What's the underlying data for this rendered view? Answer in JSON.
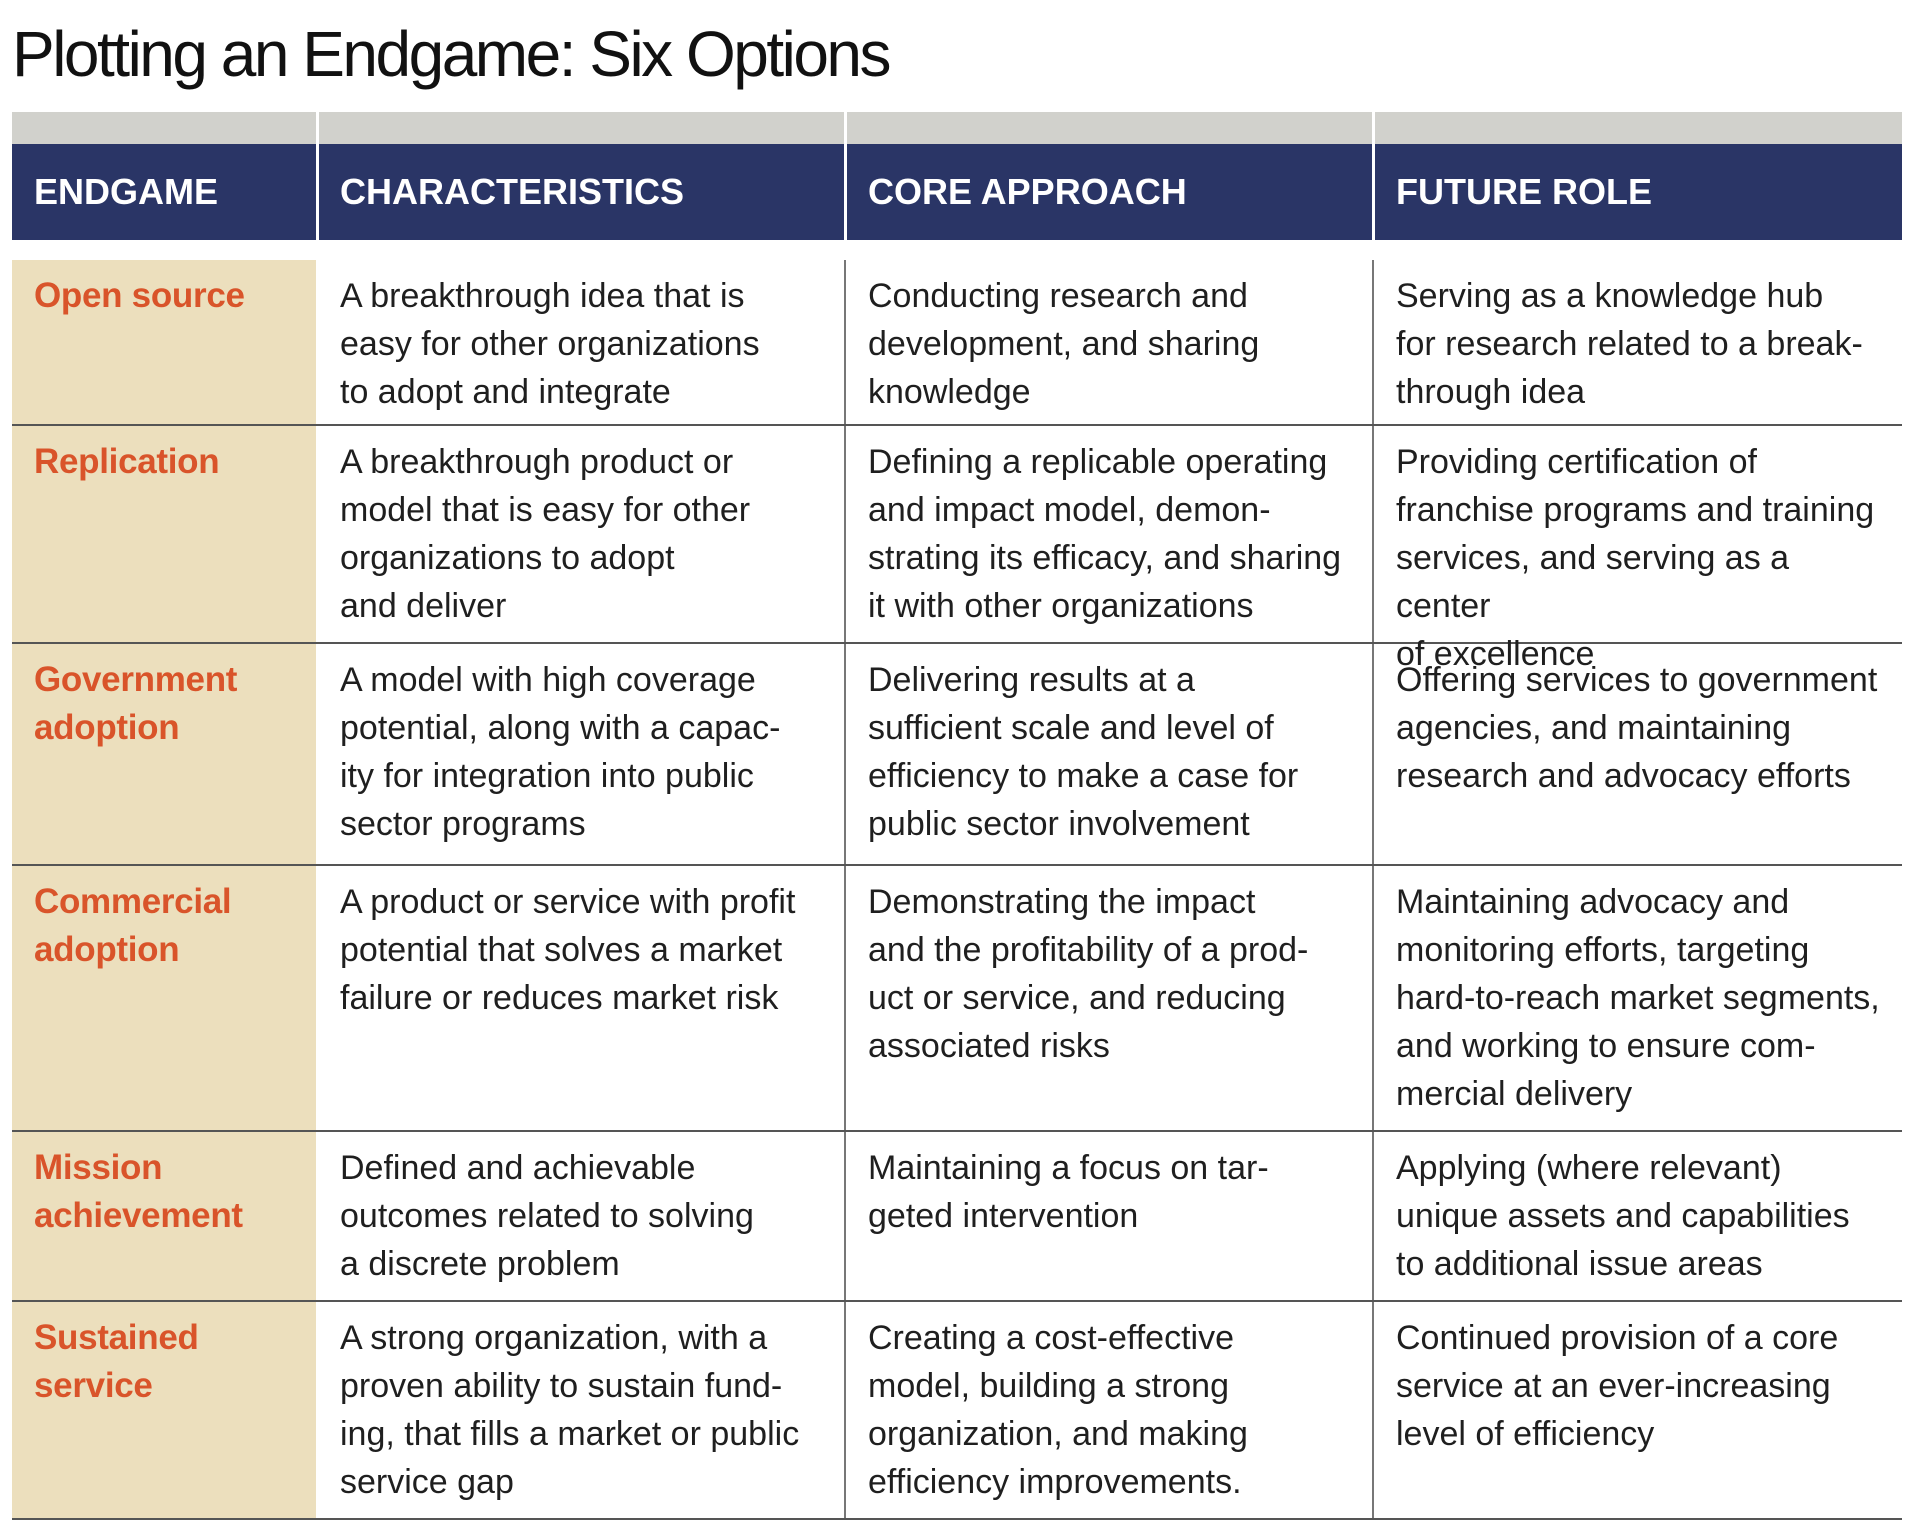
{
  "title": "Plotting an Endgame: Six Options",
  "colors": {
    "header_bg": "#2a3566",
    "header_text": "#ffffff",
    "endgame_bg": "#ecdfbd",
    "endgame_text": "#d9542a",
    "top_bar": "#d1d1cc"
  },
  "table": {
    "headers": [
      "ENDGAME",
      "CHARACTERISTICS",
      "CORE APPROACH",
      "FUTURE ROLE"
    ],
    "rows": [
      {
        "endgame": "Open source",
        "characteristics": "A breakthrough idea that is\neasy for other organizations\nto adopt and integrate",
        "core_approach": "Conducting research and\ndevelopment, and sharing\nknowledge",
        "future_role": "Serving as a knowledge hub\nfor research related to a break-\nthrough idea"
      },
      {
        "endgame": "Replication",
        "characteristics": "A breakthrough product or\nmodel that is easy for other\norganizations to adopt\nand deliver",
        "core_approach": "Defining a replicable operating\nand impact model, demon-\nstrating its efficacy, and sharing\nit with other organizations",
        "future_role": "Providing certification of\nfranchise programs and training\nservices, and serving as a center\nof excellence"
      },
      {
        "endgame": "Government\nadoption",
        "characteristics": "A model with high coverage\npotential, along with a capac-\nity for integration into public\nsector programs",
        "core_approach": "Delivering results at a\nsufficient scale and level of\nefficiency to make a case for\npublic sector involvement",
        "future_role": "Offering services to government\nagencies, and maintaining\nresearch and advocacy efforts"
      },
      {
        "endgame": "Commercial\nadoption",
        "characteristics": "A product or service with profit\npotential that solves a market\nfailure or reduces market risk",
        "core_approach": "Demonstrating the impact\nand the profitability of a prod-\nuct or service, and reducing\nassociated risks",
        "future_role": "Maintaining advocacy and\nmonitoring efforts, targeting\nhard-to-reach market segments,\nand working to ensure com-\nmercial delivery"
      },
      {
        "endgame": "Mission\nachievement",
        "characteristics": "Defined and achievable\noutcomes related to solving\na discrete problem",
        "core_approach": "Maintaining a focus on tar-\ngeted intervention",
        "future_role": "Applying (where relevant)\nunique assets and capabilities\nto additional issue areas"
      },
      {
        "endgame": "Sustained\nservice",
        "characteristics": "A strong organization, with a\nproven ability to sustain fund-\ning, that fills a market or public\nservice gap",
        "core_approach": "Creating a cost-effective\nmodel, building a strong\norganization, and making\nefficiency improvements.",
        "future_role": "Continued provision of a core\nservice at an ever-increasing\nlevel of efficiency"
      }
    ]
  }
}
